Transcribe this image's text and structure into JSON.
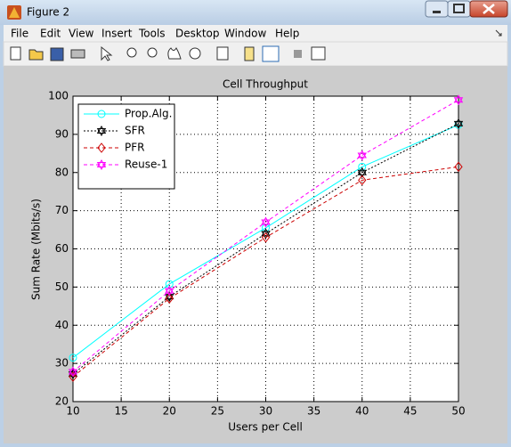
{
  "window": {
    "title": "Figure 2",
    "menu": [
      "File",
      "Edit",
      "View",
      "Insert",
      "Tools",
      "Desktop",
      "Window",
      "Help"
    ]
  },
  "chart_data": {
    "type": "line",
    "title": "Cell Throughput",
    "x_label": "Users per Cell",
    "y_label": "Sum Rate (Mbits/s)",
    "x": [
      10,
      20,
      30,
      40,
      50
    ],
    "series": [
      {
        "name": "Prop.Alg.",
        "color": "#00ffff",
        "linestyle": "solid",
        "marker": "circle",
        "values": [
          31.5,
          50.8,
          65.5,
          81.5,
          92.5
        ]
      },
      {
        "name": "SFR",
        "color": "#000000",
        "linestyle": "dotted",
        "marker": "hexagram",
        "values": [
          27.2,
          47.5,
          64,
          80,
          92.8
        ]
      },
      {
        "name": "PFR",
        "color": "#cc0000",
        "linestyle": "dashed",
        "marker": "diamond",
        "values": [
          26.5,
          47,
          63,
          78,
          81.5
        ]
      },
      {
        "name": "Reuse-1",
        "color": "#ff00ff",
        "linestyle": "dashed",
        "marker": "hexagram",
        "values": [
          27.8,
          49,
          67,
          84.5,
          99
        ]
      }
    ],
    "xlim": [
      10,
      50
    ],
    "xticks": [
      10,
      15,
      20,
      25,
      30,
      35,
      40,
      45,
      50
    ],
    "ylim": [
      20,
      100
    ],
    "yticks": [
      20,
      30,
      40,
      50,
      60,
      70,
      80,
      90,
      100
    ],
    "grid": true,
    "legend": "upper left"
  }
}
